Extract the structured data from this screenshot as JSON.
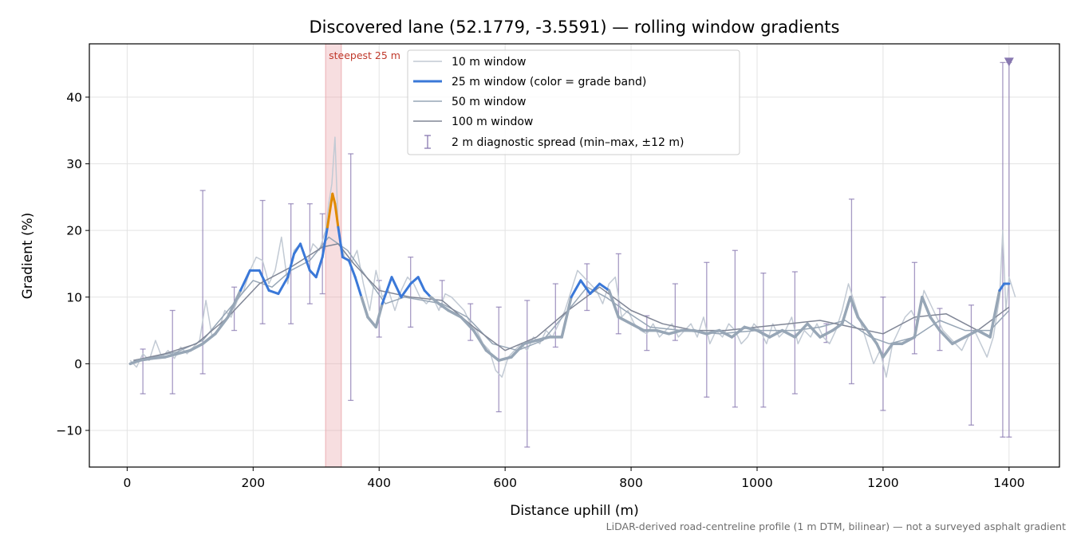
{
  "chart_data": {
    "type": "line",
    "title": "Discovered lane (52.1779, -3.5591) — rolling window gradients",
    "xlabel": "Distance uphill (m)",
    "ylabel": "Gradient (%)",
    "xlim": [
      -60,
      1480
    ],
    "ylim": [
      -15.5,
      48
    ],
    "xticks": [
      0,
      200,
      400,
      600,
      800,
      1000,
      1200,
      1400
    ],
    "yticks": [
      -10,
      0,
      10,
      20,
      30,
      40
    ],
    "xtick_labels": [
      "0",
      "200",
      "400",
      "600",
      "800",
      "1000",
      "1200",
      "1400"
    ],
    "ytick_labels": [
      "−10",
      "0",
      "10",
      "20",
      "30",
      "40"
    ],
    "grid": true,
    "legend_position": "upper-center",
    "footnote": "LiDAR-derived road-centreline profile (1 m DTM, bilinear) — not a surveyed asphalt gradient",
    "steepest_highlight": {
      "label": "steepest 25 m",
      "x_range": [
        315,
        340
      ],
      "color": "#e8a0a6"
    },
    "end_marker": {
      "x": 1400,
      "y": 45.2,
      "color": "#8878b0"
    },
    "grade_band_colors": {
      "low": "#97a6b6",
      "moderate": "#3a78d8",
      "steep": "#e08a00"
    },
    "series": [
      {
        "name": "10 m window",
        "color": "#c2cad4",
        "width": 1.5,
        "x": [
          5,
          15,
          25,
          35,
          45,
          55,
          65,
          75,
          85,
          95,
          105,
          115,
          125,
          135,
          145,
          155,
          165,
          175,
          185,
          195,
          205,
          215,
          225,
          235,
          245,
          255,
          265,
          275,
          285,
          295,
          305,
          315,
          320,
          325,
          330,
          335,
          345,
          355,
          365,
          375,
          385,
          395,
          405,
          415,
          425,
          435,
          445,
          455,
          465,
          475,
          485,
          495,
          505,
          515,
          525,
          535,
          545,
          555,
          565,
          575,
          585,
          595,
          605,
          615,
          625,
          635,
          645,
          655,
          665,
          675,
          685,
          695,
          705,
          715,
          725,
          735,
          745,
          755,
          765,
          775,
          785,
          795,
          805,
          815,
          825,
          835,
          845,
          855,
          865,
          875,
          885,
          895,
          905,
          915,
          925,
          935,
          945,
          955,
          965,
          975,
          985,
          995,
          1005,
          1015,
          1025,
          1035,
          1045,
          1055,
          1065,
          1075,
          1085,
          1095,
          1105,
          1115,
          1125,
          1135,
          1145,
          1155,
          1165,
          1175,
          1185,
          1195,
          1205,
          1215,
          1225,
          1235,
          1245,
          1255,
          1265,
          1275,
          1285,
          1295,
          1305,
          1315,
          1325,
          1335,
          1345,
          1355,
          1365,
          1375,
          1385,
          1390,
          1395,
          1400,
          1410
        ],
        "y": [
          0.5,
          -0.5,
          1.5,
          0.5,
          3.5,
          1,
          2,
          0.8,
          2.5,
          1.5,
          2.5,
          3.5,
          9.5,
          4,
          5,
          8,
          7,
          9.5,
          11,
          14,
          16,
          15.5,
          12,
          14,
          19,
          12,
          17,
          18,
          15,
          18,
          17,
          20,
          24,
          27,
          34,
          20,
          16,
          15,
          17,
          12,
          8,
          14,
          10,
          11,
          8,
          11,
          13,
          12,
          10,
          9,
          10,
          8,
          10.5,
          10,
          9,
          8,
          6,
          5,
          3,
          2,
          -1,
          -2,
          1,
          2,
          3,
          2,
          4,
          3,
          5,
          4,
          6,
          8,
          11,
          14,
          13,
          12,
          11,
          9,
          12,
          13,
          7,
          8,
          6,
          5,
          4.5,
          6,
          4,
          5,
          6,
          4,
          5,
          6,
          4,
          7,
          3,
          5,
          4,
          6,
          5,
          3,
          4,
          6,
          5,
          3,
          6,
          4,
          5,
          7,
          3,
          5,
          4,
          6,
          4,
          3,
          5,
          8,
          12,
          9,
          6,
          3,
          0,
          2,
          -2,
          3,
          5,
          7,
          8,
          6,
          11,
          9,
          7,
          5,
          4,
          3,
          2,
          4,
          5,
          3,
          1,
          4,
          10,
          20,
          8,
          13,
          10
        ]
      },
      {
        "name": "25 m window (color = grade band)",
        "color": "#3a78d8",
        "width": 3,
        "x": [
          5,
          20,
          40,
          60,
          80,
          100,
          120,
          140,
          160,
          180,
          195,
          210,
          225,
          240,
          255,
          265,
          275,
          290,
          300,
          310,
          318,
          322,
          326,
          330,
          335,
          342,
          352,
          362,
          372,
          382,
          395,
          405,
          420,
          435,
          450,
          462,
          472,
          482,
          495,
          510,
          530,
          550,
          570,
          590,
          610,
          630,
          650,
          670,
          690,
          705,
          720,
          735,
          750,
          765,
          780,
          800,
          820,
          840,
          860,
          880,
          900,
          920,
          940,
          960,
          980,
          1000,
          1020,
          1040,
          1060,
          1080,
          1100,
          1120,
          1135,
          1148,
          1160,
          1175,
          1190,
          1200,
          1215,
          1230,
          1250,
          1262,
          1275,
          1290,
          1310,
          1330,
          1350,
          1370,
          1385,
          1392,
          1400
        ],
        "y": [
          0,
          0.5,
          0.8,
          1,
          1.5,
          2,
          3,
          4.5,
          7,
          11,
          14,
          14,
          11,
          10.5,
          13,
          16.5,
          18,
          14,
          13,
          16,
          20.5,
          23,
          25.5,
          24,
          20.5,
          16,
          15.5,
          13,
          10,
          7,
          5.5,
          9,
          13,
          10,
          12,
          13,
          11,
          10,
          9,
          8,
          7,
          5,
          2,
          0.5,
          1,
          3,
          3.5,
          4,
          4,
          10,
          12.5,
          10.5,
          12,
          11,
          7,
          6,
          5,
          5,
          4.5,
          5,
          5,
          4.5,
          5,
          4,
          5.5,
          5,
          4,
          5,
          4,
          6,
          4,
          5,
          6,
          10,
          7,
          5,
          3,
          1,
          3,
          3,
          4,
          10,
          7,
          5,
          3,
          4,
          5,
          4,
          11,
          12,
          12
        ]
      },
      {
        "name": "50 m window",
        "color": "#97a6b6",
        "width": 1.5,
        "x": [
          10,
          40,
          80,
          120,
          160,
          200,
          230,
          260,
          290,
          320,
          350,
          380,
          410,
          440,
          470,
          500,
          540,
          580,
          620,
          660,
          700,
          730,
          760,
          790,
          830,
          880,
          940,
          1000,
          1060,
          1100,
          1140,
          1180,
          1210,
          1250,
          1290,
          1330,
          1370,
          1400
        ],
        "y": [
          0.5,
          1,
          1.8,
          3.5,
          8,
          12.5,
          11.5,
          14,
          15.5,
          19,
          17,
          13,
          9,
          10,
          9.5,
          9,
          7,
          3,
          2,
          3.5,
          8,
          11.5,
          10,
          8,
          5.5,
          5,
          4.5,
          5,
          5,
          5.5,
          6.5,
          4,
          3,
          4,
          6.5,
          5,
          5,
          8
        ]
      },
      {
        "name": "100 m window",
        "color": "#808696",
        "width": 1.5,
        "x": [
          10,
          60,
          110,
          160,
          210,
          260,
          310,
          335,
          360,
          400,
          450,
          500,
          550,
          600,
          650,
          700,
          750,
          800,
          850,
          900,
          950,
          1000,
          1050,
          1100,
          1150,
          1200,
          1250,
          1300,
          1350,
          1400
        ],
        "y": [
          0.5,
          1.5,
          3,
          7,
          12,
          14.5,
          17.5,
          18,
          15,
          11,
          10,
          9.5,
          5.5,
          2,
          4,
          8,
          11.5,
          8,
          6,
          5,
          5,
          5.5,
          6,
          6.5,
          5.5,
          4.5,
          7,
          7.5,
          5,
          8.5
        ]
      }
    ],
    "error_bars": {
      "name": "2 m diagnostic spread (min–max, ±12 m)",
      "color": "#8878b0",
      "x": [
        25,
        72,
        120,
        170,
        215,
        260,
        290,
        310,
        355,
        400,
        450,
        500,
        545,
        590,
        635,
        680,
        730,
        780,
        825,
        870,
        920,
        965,
        1010,
        1060,
        1110,
        1150,
        1200,
        1250,
        1290,
        1340,
        1390,
        1400
      ],
      "low": [
        -4.5,
        -4.5,
        -1.5,
        5,
        6,
        6,
        9,
        10.5,
        -5.5,
        4,
        5.5,
        8.5,
        3.5,
        -7.2,
        -12.5,
        2.5,
        8,
        4.5,
        2,
        3.5,
        -5,
        -6.5,
        -6.5,
        -4.5,
        3.2,
        -3,
        -7,
        1.5,
        2,
        -9.2,
        -11,
        -11
      ],
      "high": [
        2.2,
        8,
        26,
        11.5,
        24.5,
        24,
        24,
        22.5,
        31.5,
        12.5,
        16,
        12.5,
        9,
        8.5,
        9.5,
        12,
        15,
        16.5,
        7.2,
        12,
        15.2,
        17,
        13.6,
        13.8,
        6,
        24.7,
        10,
        15.2,
        8.3,
        8.8,
        45.2,
        45.2
      ]
    }
  }
}
